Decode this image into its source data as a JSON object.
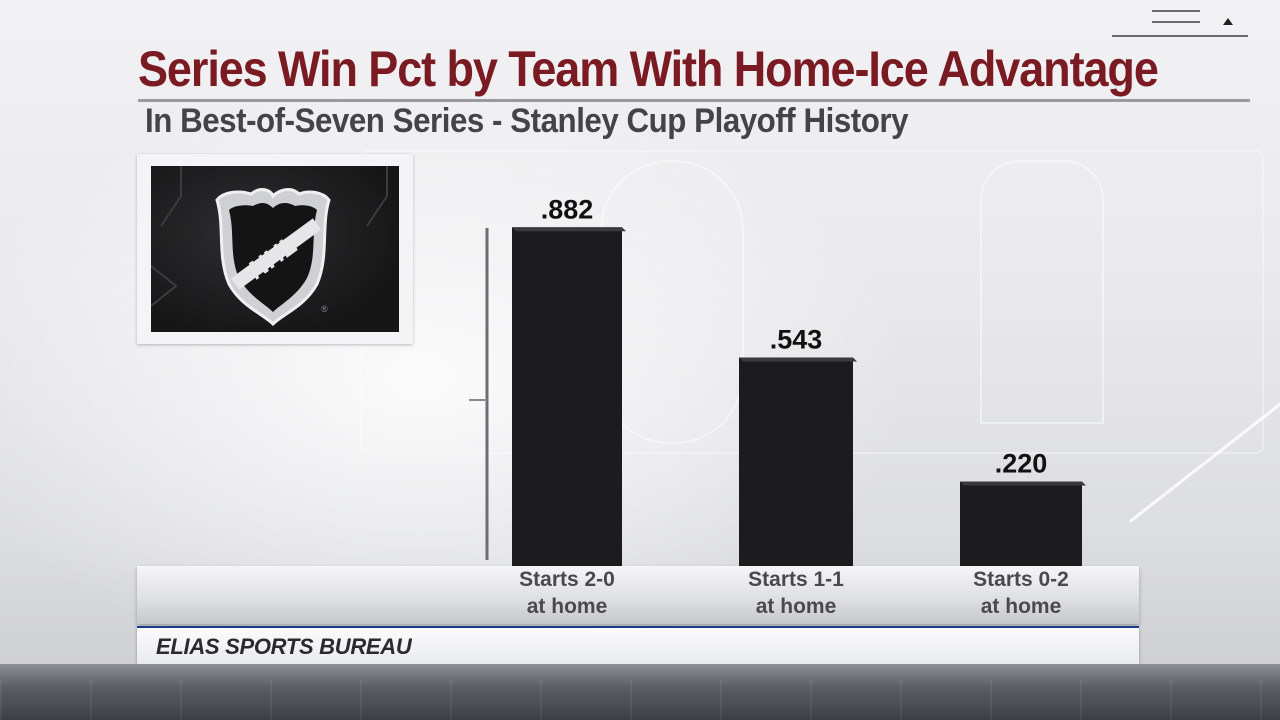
{
  "header": {
    "title": "Series Win Pct by Team With Home-Ice Advantage",
    "subtitle": "In Best-of-Seven Series - Stanley Cup Playoff History"
  },
  "logo": {
    "icon": "nhl-shield-logo-icon",
    "text": "NHL"
  },
  "chart_data": {
    "type": "bar",
    "title": "Series Win Pct by Team With Home-Ice Advantage",
    "subtitle": "In Best-of-Seven Series - Stanley Cup Playoff History",
    "categories": [
      [
        "Starts 2-0",
        "at home"
      ],
      [
        "Starts 1-1",
        "at home"
      ],
      [
        "Starts 0-2",
        "at home"
      ]
    ],
    "values": [
      0.882,
      0.543,
      0.22
    ],
    "value_labels": [
      ".882",
      ".543",
      ".220"
    ],
    "xlabel": "",
    "ylabel": "",
    "ylim": [
      0,
      1
    ],
    "grid": false,
    "bar_color": "#1c1c1e"
  },
  "source": {
    "text": "ELIAS SPORTS BUREAU",
    "accent_color": "#1c3a8a"
  },
  "colors": {
    "title": "#7a1a22",
    "subtitle": "#444448"
  }
}
